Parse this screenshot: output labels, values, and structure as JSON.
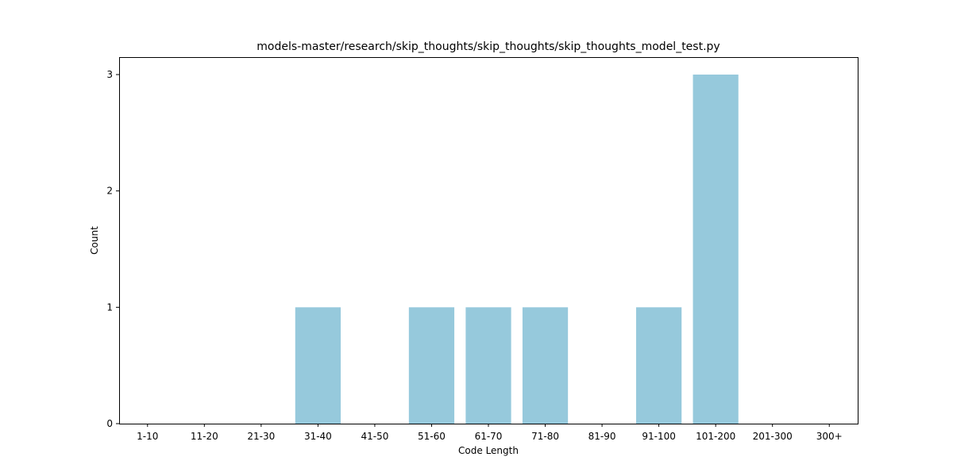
{
  "chart_data": {
    "type": "bar",
    "title": "models-master/research/skip_thoughts/skip_thoughts/skip_thoughts_model_test.py",
    "xlabel": "Code Length",
    "ylabel": "Count",
    "categories": [
      "1-10",
      "11-20",
      "21-30",
      "31-40",
      "41-50",
      "51-60",
      "61-70",
      "71-80",
      "81-90",
      "91-100",
      "101-200",
      "201-300",
      "300+"
    ],
    "values": [
      0,
      0,
      0,
      1,
      0,
      1,
      1,
      1,
      0,
      1,
      3,
      0,
      0
    ],
    "ylim": [
      0,
      3.15
    ],
    "yticks": [
      0,
      1,
      2,
      3
    ],
    "bar_color": "#96c9dc",
    "grid": false,
    "legend": "none"
  }
}
